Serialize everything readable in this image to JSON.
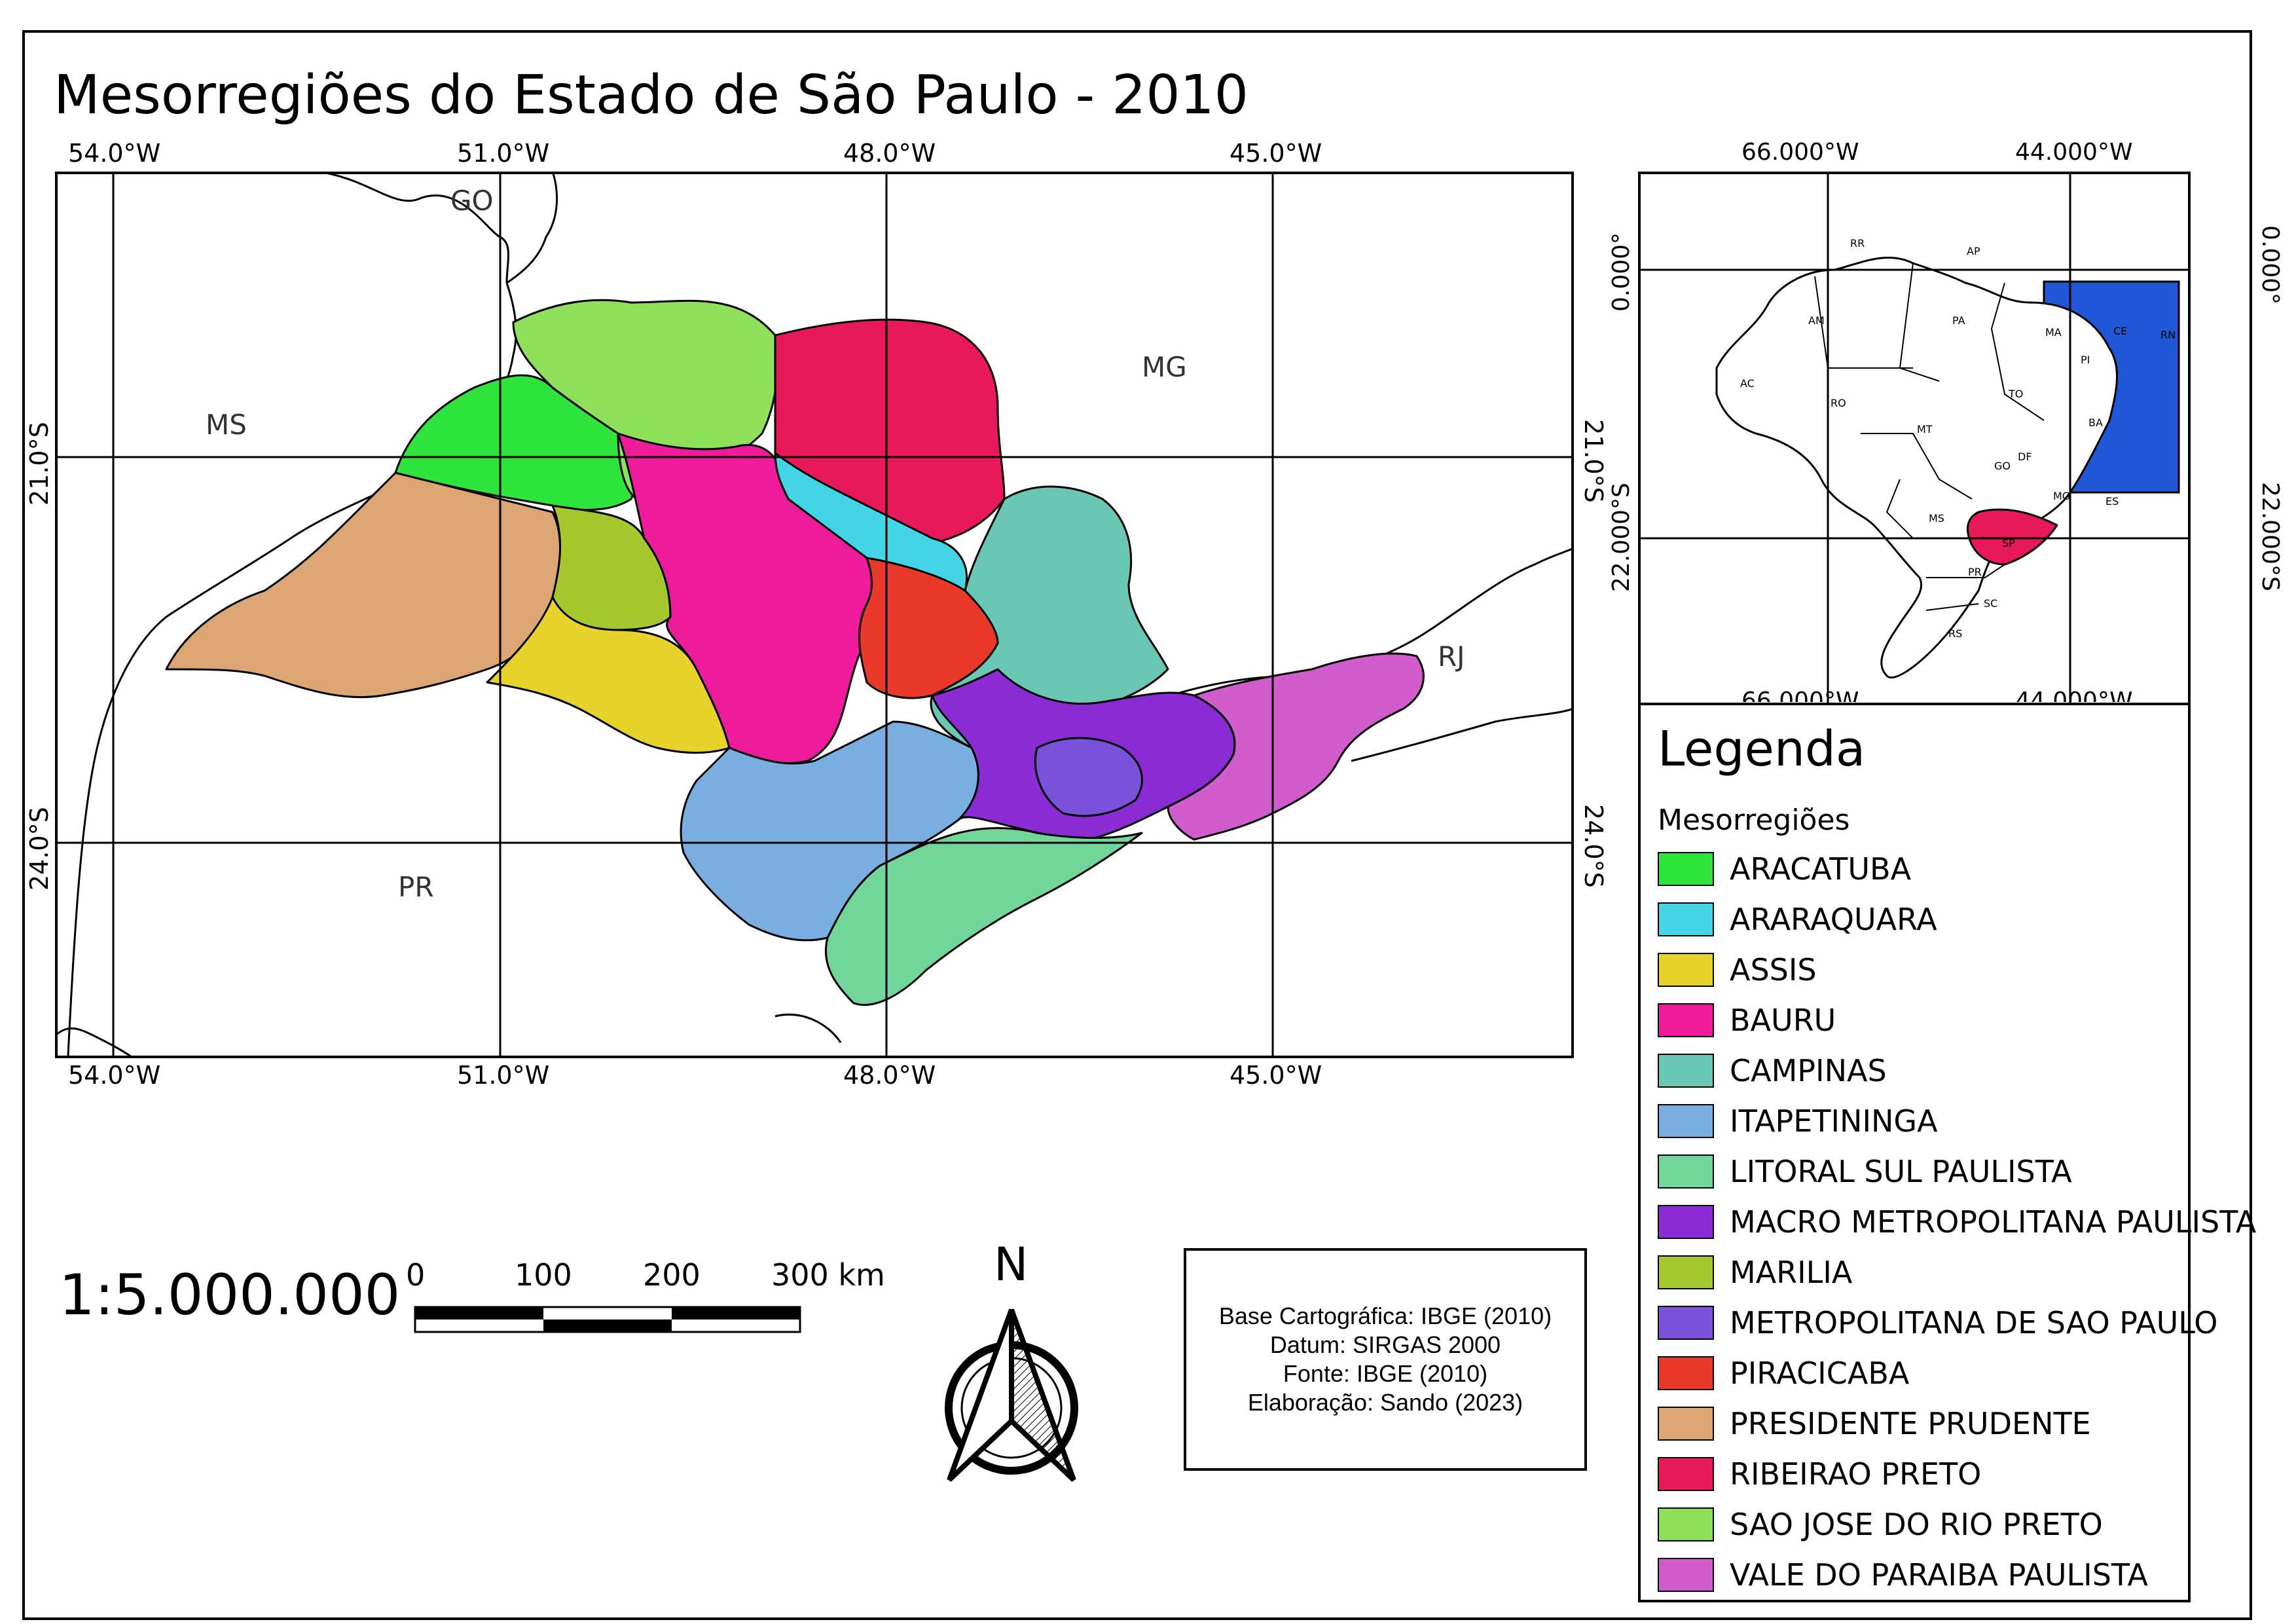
{
  "title": "Mesorregiões do Estado de São Paulo - 2010",
  "main_map": {
    "longitude_labels": [
      "54.0°W",
      "51.0°W",
      "48.0°W",
      "45.0°W"
    ],
    "latitude_labels": [
      "21.0°S",
      "24.0°S"
    ],
    "state_labels": {
      "go": "GO",
      "ms": "MS",
      "mg": "MG",
      "rj": "RJ",
      "pr": "PR"
    }
  },
  "inset_map": {
    "longitude_labels": [
      "66.000°W",
      "44.000°W"
    ],
    "latitude_labels": [
      "0.000°",
      "22.000°S"
    ],
    "state_labels": [
      "RR",
      "AP",
      "AM",
      "PA",
      "MA",
      "CE",
      "RN",
      "PI",
      "AC",
      "RO",
      "TO",
      "MT",
      "BA",
      "GO",
      "DF",
      "MG",
      "ES",
      "MS",
      "SP",
      "PR",
      "SC",
      "RS"
    ],
    "highlight_color": "#e8195a",
    "extent_color": "#1f57d6"
  },
  "legend": {
    "title": "Legenda",
    "subtitle": "Mesorregiões",
    "items": [
      {
        "label": "ARACATUBA",
        "color": "#2fe43c"
      },
      {
        "label": "ARARAQUARA",
        "color": "#45d3e6"
      },
      {
        "label": "ASSIS",
        "color": "#e8d22c"
      },
      {
        "label": "BAURU",
        "color": "#ee1c9b"
      },
      {
        "label": "CAMPINAS",
        "color": "#6ac7b3"
      },
      {
        "label": "ITAPETININGA",
        "color": "#7aaee0"
      },
      {
        "label": "LITORAL SUL PAULISTA",
        "color": "#72d69a"
      },
      {
        "label": "MACRO METROPOLITANA PAULISTA",
        "color": "#8a2bd4"
      },
      {
        "label": "MARILIA",
        "color": "#a6c82e"
      },
      {
        "label": "METROPOLITANA DE SAO PAULO",
        "color": "#7a52d9"
      },
      {
        "label": "PIRACICABA",
        "color": "#e8392a"
      },
      {
        "label": "PRESIDENTE PRUDENTE",
        "color": "#dba674"
      },
      {
        "label": "RIBEIRAO PRETO",
        "color": "#e8195a"
      },
      {
        "label": "SAO JOSE DO RIO PRETO",
        "color": "#8fe05a"
      },
      {
        "label": "VALE DO PARAIBA PAULISTA",
        "color": "#d15ccb"
      }
    ]
  },
  "scale": {
    "ratio": "1:5.000.000",
    "bar_labels": [
      "0",
      "100",
      "200",
      "300 km"
    ]
  },
  "north_arrow": {
    "letter": "N"
  },
  "credits": {
    "line1": "Base Cartográfica: IBGE (2010)",
    "line2": "Datum: SIRGAS 2000",
    "line3": "Fonte: IBGE (2010)",
    "line4": "Elaboração: Sando (2023)"
  }
}
